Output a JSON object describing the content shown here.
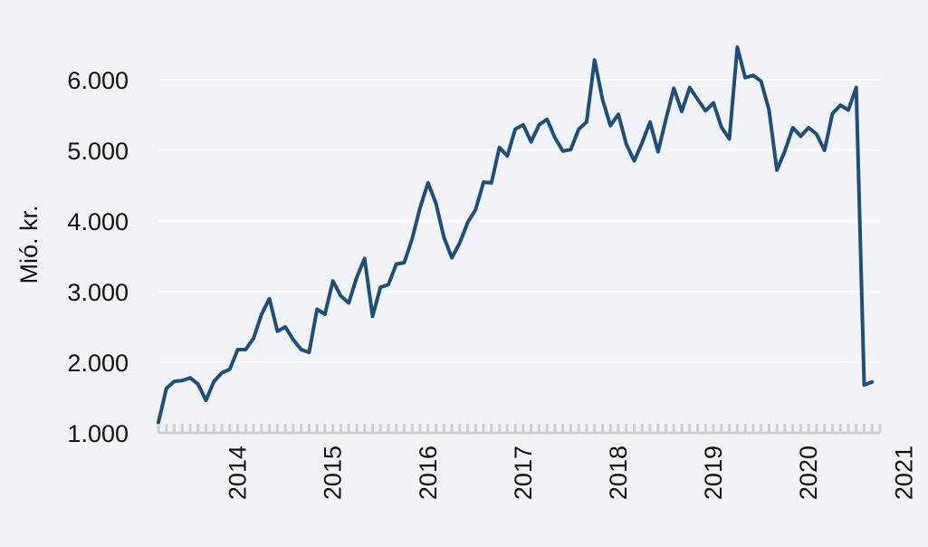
{
  "chart_data": {
    "type": "line",
    "title": "",
    "xlabel": "",
    "ylabel": "Mió. kr.",
    "ylim": [
      1000,
      6000
    ],
    "yticks": [
      1000,
      2000,
      3000,
      4000,
      5000,
      6000
    ],
    "ytick_labels": [
      "1.000",
      "2.000",
      "3.000",
      "4.000",
      "5.000",
      "6.000"
    ],
    "xticks": [
      "2014",
      "2015",
      "2016",
      "2017",
      "2018",
      "2019",
      "2020",
      "2021"
    ],
    "grid": "horizontal",
    "line_color": "#1f4e79",
    "series": [
      {
        "x": [
          "2013-09",
          "2013-10",
          "2013-11",
          "2013-12",
          "2014-01",
          "2014-02",
          "2014-03",
          "2014-04",
          "2014-05",
          "2014-06",
          "2014-07",
          "2014-08",
          "2014-09",
          "2014-10",
          "2014-11",
          "2014-12",
          "2015-01",
          "2015-02",
          "2015-03",
          "2015-04",
          "2015-05",
          "2015-06",
          "2015-07",
          "2015-08",
          "2015-09",
          "2015-10",
          "2015-11",
          "2015-12",
          "2016-01",
          "2016-02",
          "2016-03",
          "2016-04",
          "2016-05",
          "2016-06",
          "2016-07",
          "2016-08",
          "2016-09",
          "2016-10",
          "2016-11",
          "2016-12",
          "2017-01",
          "2017-02",
          "2017-03",
          "2017-04",
          "2017-05",
          "2017-06",
          "2017-07",
          "2017-08",
          "2017-09",
          "2017-10",
          "2017-11",
          "2017-12",
          "2018-01",
          "2018-02",
          "2018-03",
          "2018-04",
          "2018-05",
          "2018-06",
          "2018-07",
          "2018-08",
          "2018-09",
          "2018-10",
          "2018-11",
          "2018-12",
          "2019-01",
          "2019-02",
          "2019-03",
          "2019-04",
          "2019-05",
          "2019-06",
          "2019-07",
          "2019-08",
          "2019-09",
          "2019-10",
          "2019-11",
          "2019-12",
          "2020-01",
          "2020-02",
          "2020-03",
          "2020-04",
          "2020-05",
          "2020-06",
          "2020-07",
          "2020-08",
          "2020-09",
          "2020-10",
          "2020-11",
          "2020-12",
          "2021-01",
          "2021-02",
          "2021-03"
        ],
        "values": [
          1150,
          1630,
          1730,
          1740,
          1780,
          1690,
          1460,
          1730,
          1850,
          1900,
          2180,
          2180,
          2340,
          2680,
          2900,
          2440,
          2500,
          2320,
          2180,
          2140,
          2750,
          2680,
          3150,
          2940,
          2840,
          3200,
          3470,
          2650,
          3060,
          3100,
          3390,
          3410,
          3750,
          4190,
          4540,
          4250,
          3770,
          3480,
          3690,
          3980,
          4160,
          4550,
          4540,
          5040,
          4920,
          5300,
          5360,
          5120,
          5360,
          5440,
          5180,
          4990,
          5010,
          5300,
          5400,
          6280,
          5720,
          5350,
          5510,
          5090,
          4850,
          5110,
          5400,
          4980,
          5440,
          5880,
          5550,
          5890,
          5720,
          5560,
          5670,
          5330,
          5160,
          6460,
          6030,
          6060,
          5980,
          5570,
          4720,
          4990,
          5320,
          5200,
          5320,
          5230,
          5000,
          5520,
          5640,
          5570,
          5890,
          1680,
          1720
        ]
      }
    ]
  }
}
